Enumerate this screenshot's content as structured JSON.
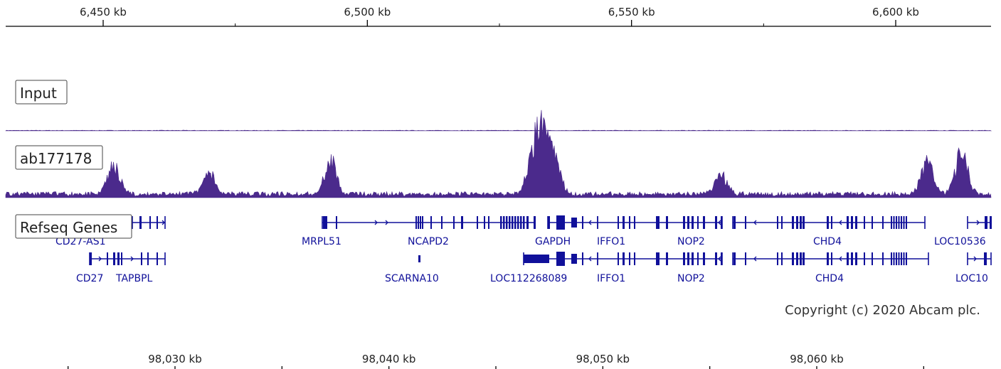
{
  "chart_data": [
    {
      "type": "genome-browser",
      "ruler": {
        "unit": "kb",
        "ticks": [
          {
            "value": 6450,
            "label": "6,450 kb"
          },
          {
            "value": 6500,
            "label": "6,500 kb"
          },
          {
            "value": 6550,
            "label": "6,550 kb"
          },
          {
            "value": 6600,
            "label": "6,600 kb"
          }
        ],
        "minor_ticks": [
          6475,
          6525,
          6575
        ]
      },
      "tracks": [
        {
          "name": "Input",
          "type": "area",
          "color": "#4b2a8c",
          "peaks": [],
          "baseline": 0.06
        },
        {
          "name": "ab177178",
          "type": "area",
          "color": "#4b2a8c",
          "baseline": 0.08,
          "peaks": [
            {
              "x": 6452,
              "height": 0.55
            },
            {
              "x": 6470,
              "height": 0.38
            },
            {
              "x": 6493,
              "height": 0.62
            },
            {
              "x": 6531.5,
              "height": 0.82
            },
            {
              "x": 6533.5,
              "height": 1.0
            },
            {
              "x": 6535.5,
              "height": 0.58
            },
            {
              "x": 6567,
              "height": 0.33
            },
            {
              "x": 6606,
              "height": 0.6
            },
            {
              "x": 6612.5,
              "height": 0.78
            }
          ]
        }
      ]
    },
    {
      "type": "genome-axis",
      "unit": "kb",
      "ticks": [
        {
          "value": 98030,
          "label": "98,030 kb"
        },
        {
          "value": 98040,
          "label": "98,040 kb"
        },
        {
          "value": 98050,
          "label": "98,050 kb"
        },
        {
          "value": 98060,
          "label": "98,060 kb"
        }
      ]
    }
  ],
  "genes_track": {
    "name": "Refseq Genes",
    "color": "#10109a",
    "row1_labels": [
      "CD27-AS1",
      "MRPL51",
      "NCAPD2",
      "GAPDH",
      "IFFO1",
      "NOP2",
      "CHD4",
      "LOC10536"
    ],
    "row2_labels": [
      "CD27",
      "TAPBPL",
      "SCARNA10",
      "LOC112268089",
      "IFFO1",
      "NOP2",
      "CHD4",
      "LOC10"
    ]
  },
  "copyright": "Copyright (c) 2020 Abcam plc."
}
